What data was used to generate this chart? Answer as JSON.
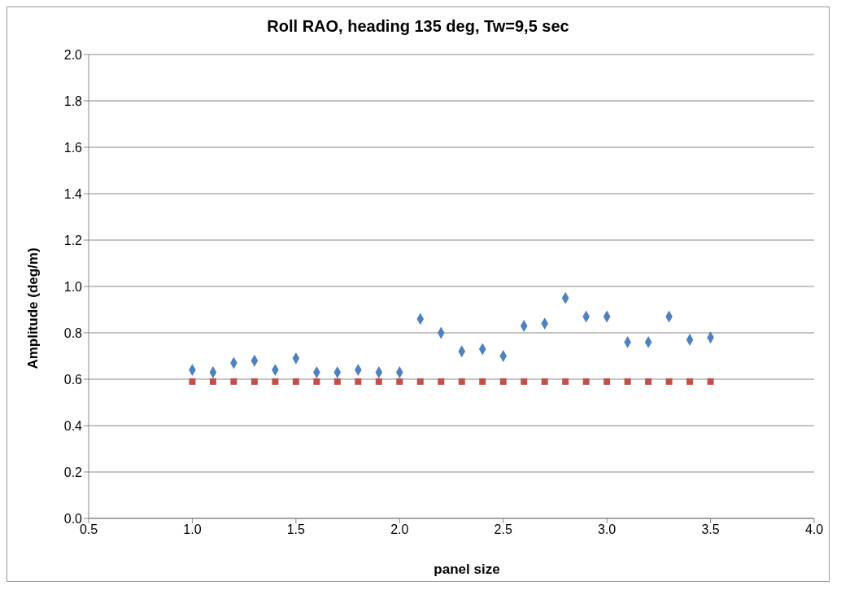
{
  "chart_data": {
    "type": "scatter",
    "title": "Roll RAO, heading 135 deg, Tw=9,5 sec",
    "xlabel": "panel size",
    "ylabel": "Amplitude (deg/m)",
    "x": [
      1.0,
      1.1,
      1.2,
      1.3,
      1.4,
      1.5,
      1.6,
      1.7,
      1.8,
      1.9,
      2.0,
      2.1,
      2.2,
      2.3,
      2.4,
      2.5,
      2.6,
      2.7,
      2.8,
      2.9,
      3.0,
      3.1,
      3.2,
      3.3,
      3.4,
      3.5
    ],
    "series": [
      {
        "color": "#4f81bd",
        "marker": "diamond",
        "values": [
          0.64,
          0.63,
          0.67,
          0.68,
          0.64,
          0.69,
          0.63,
          0.63,
          0.64,
          0.63,
          0.63,
          0.86,
          0.8,
          0.72,
          0.73,
          0.7,
          0.83,
          0.84,
          0.95,
          0.87,
          0.87,
          0.76,
          0.76,
          0.87,
          0.77,
          0.78
        ]
      },
      {
        "color": "#c0504d",
        "marker": "square",
        "values": [
          0.59,
          0.59,
          0.59,
          0.59,
          0.59,
          0.59,
          0.59,
          0.59,
          0.59,
          0.59,
          0.59,
          0.59,
          0.59,
          0.59,
          0.59,
          0.59,
          0.59,
          0.59,
          0.59,
          0.59,
          0.59,
          0.59,
          0.59,
          0.59,
          0.59,
          0.59
        ]
      }
    ],
    "xlim": [
      0.5,
      4.0
    ],
    "xticks": [
      {
        "value": 0.5,
        "label": "0.5"
      },
      {
        "value": 1,
        "label": "1.0"
      },
      {
        "value": 1.5,
        "label": "1.5"
      },
      {
        "value": 2,
        "label": "2.0"
      },
      {
        "value": 2.5,
        "label": "2.5"
      },
      {
        "value": 3,
        "label": "3.0"
      },
      {
        "value": 3.5,
        "label": "3.5"
      },
      {
        "value": 4,
        "label": "4.0"
      }
    ],
    "ylim": [
      0,
      2
    ],
    "yticks": [
      {
        "value": 0,
        "label": "0.0"
      },
      {
        "value": 0.2,
        "label": "0.2"
      },
      {
        "value": 0.4,
        "label": "0.4"
      },
      {
        "value": 0.6,
        "label": "0.6"
      },
      {
        "value": 0.8,
        "label": "0.8"
      },
      {
        "value": 1,
        "label": "1.0"
      },
      {
        "value": 1.2,
        "label": "1.2"
      },
      {
        "value": 1.4,
        "label": "1.4"
      },
      {
        "value": 1.6,
        "label": "1.6"
      },
      {
        "value": 1.8,
        "label": "1.8"
      },
      {
        "value": 2,
        "label": "2.0"
      }
    ],
    "grid": "y"
  }
}
